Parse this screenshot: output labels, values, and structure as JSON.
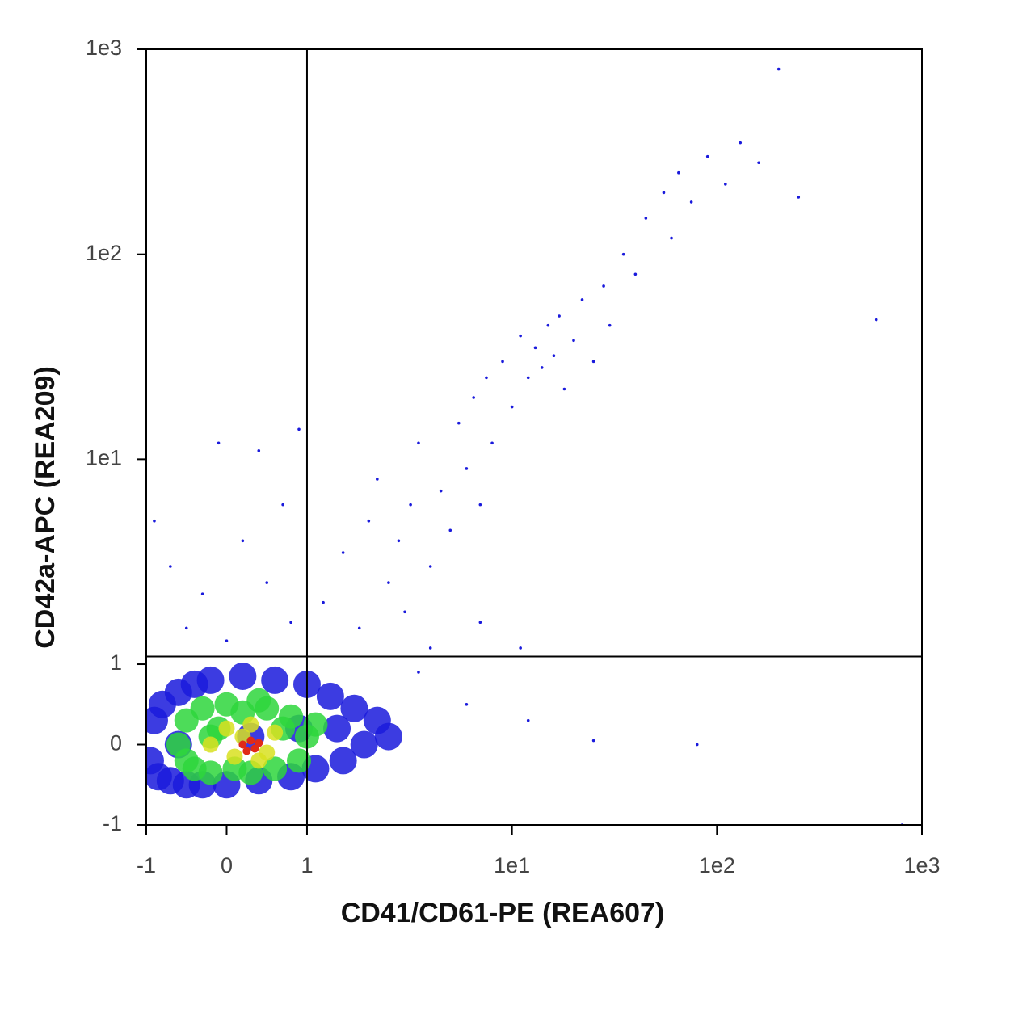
{
  "chart_data": {
    "type": "scatter",
    "x_label": "CD41/CD61-PE (REA607)",
    "y_label": "CD42a-APC (REA209)",
    "scale": "biexponential",
    "xlim": [
      -1,
      1000
    ],
    "ylim": [
      -1,
      1000
    ],
    "xticks": [
      -1,
      0,
      1,
      {
        "value": 10,
        "label": "1e1"
      },
      {
        "value": 100,
        "label": "1e2"
      },
      {
        "value": 1000,
        "label": "1e3"
      }
    ],
    "yticks": [
      -1,
      0,
      1,
      {
        "value": 10,
        "label": "1e1"
      },
      {
        "value": 100,
        "label": "1e2"
      },
      {
        "value": 1000,
        "label": "1e3"
      }
    ],
    "gates": {
      "x": 1,
      "y": 1.09
    },
    "series": [
      {
        "color": "#1a1adc",
        "marker_size": 17,
        "x": [
          -0.95,
          -0.9,
          -0.85,
          -0.8,
          -0.7,
          -0.6,
          -0.5,
          -0.4,
          -0.3,
          -0.2,
          0,
          0.2,
          0.4,
          0.6,
          0.8,
          1.0,
          1.1,
          1.3,
          1.5,
          1.7,
          1.9,
          2.2,
          2.5,
          -0.6,
          0.3,
          0.9,
          1.4
        ],
        "y": [
          -0.2,
          0.3,
          -0.4,
          0.5,
          -0.45,
          0.65,
          -0.5,
          0.75,
          -0.5,
          0.8,
          -0.5,
          0.85,
          -0.45,
          0.8,
          -0.4,
          0.75,
          -0.3,
          0.6,
          -0.2,
          0.45,
          0,
          0.3,
          0.1,
          0,
          0.1,
          0.2,
          0.2
        ]
      },
      {
        "color": "#1a1adc",
        "marker_size": 1.8,
        "x": [
          3.5,
          4.0,
          -0.9,
          -0.7,
          -0.5,
          -0.3,
          0,
          0.2,
          0.5,
          0.7,
          0.8,
          0.9,
          0.4,
          -0.1,
          1.2,
          1.5,
          1.8,
          2,
          2.2,
          2.5,
          2.8,
          3,
          3.2,
          3.5,
          4,
          4.5,
          5,
          5.5,
          6,
          6.5,
          7,
          7.5,
          8,
          9,
          10,
          11,
          12,
          13,
          14,
          15,
          16,
          17,
          18,
          20,
          22,
          25,
          28,
          30,
          35,
          40,
          45,
          55,
          60,
          65,
          75,
          90,
          110,
          130,
          160,
          200,
          250,
          600,
          7,
          12,
          25,
          80,
          6,
          11,
          800
        ],
        "y": [
          0.9,
          1.2,
          5,
          3,
          1.5,
          2.2,
          1.3,
          4,
          2.5,
          6,
          1.6,
          14,
          11,
          12,
          2,
          3.5,
          1.5,
          5,
          8,
          2.5,
          4,
          1.8,
          6,
          12,
          3,
          7,
          4.5,
          15,
          9,
          20,
          6,
          25,
          12,
          30,
          18,
          40,
          25,
          35,
          28,
          45,
          32,
          50,
          22,
          38,
          60,
          30,
          70,
          45,
          100,
          80,
          150,
          200,
          120,
          250,
          180,
          300,
          220,
          350,
          280,
          800,
          190,
          48,
          1.6,
          0.3,
          0.05,
          0,
          0.5,
          1.2,
          -1
        ]
      },
      {
        "color": "#2ed63c",
        "marker_size": 15,
        "x": [
          -0.6,
          -0.5,
          -0.4,
          -0.3,
          -0.2,
          -0.1,
          0,
          0.1,
          0.2,
          0.3,
          0.5,
          0.6,
          0.7,
          0.8,
          0.9,
          1.0,
          0.4,
          -0.2,
          1.1,
          -0.5
        ],
        "y": [
          0,
          0.3,
          -0.3,
          0.45,
          -0.35,
          0.2,
          0.5,
          -0.3,
          0.4,
          -0.35,
          0.45,
          -0.3,
          0.2,
          0.35,
          -0.2,
          0.1,
          0.55,
          0.1,
          0.25,
          -0.2
        ]
      },
      {
        "color": "#d8e020",
        "marker_size": 10,
        "x": [
          -0.2,
          0,
          0.1,
          0.3,
          0.5,
          0.6,
          0.4,
          0.2
        ],
        "y": [
          0,
          0.2,
          -0.15,
          0.25,
          -0.1,
          0.15,
          -0.2,
          0.1
        ]
      },
      {
        "color": "#e02a18",
        "marker_size": 5,
        "x": [
          0.2,
          0.3,
          0.35,
          0.4,
          0.25
        ],
        "y": [
          0,
          0.05,
          -0.05,
          0.02,
          -0.08
        ]
      }
    ]
  }
}
